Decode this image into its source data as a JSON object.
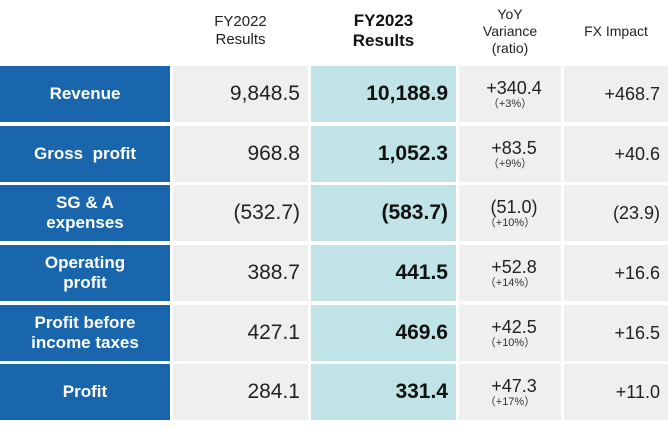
{
  "headers": {
    "fy2022": [
      "FY2022",
      "Results"
    ],
    "fy2023": [
      "FY2023",
      "Results"
    ],
    "variance": [
      "YoY",
      "Variance",
      "(ratio)"
    ],
    "fx": "FX Impact"
  },
  "rows": [
    {
      "label": [
        "Revenue"
      ],
      "fy2022": "9,848.5",
      "fy2023": "10,188.9",
      "variance": "+340.4",
      "ratio": "（+3%）",
      "fx": "+468.7"
    },
    {
      "label": [
        "Gross  profit"
      ],
      "fy2022": "968.8",
      "fy2023": "1,052.3",
      "variance": "+83.5",
      "ratio": "（+9%）",
      "fx": "+40.6"
    },
    {
      "label": [
        "SG & A",
        "expenses"
      ],
      "fy2022": "(532.7)",
      "fy2023": "(583.7)",
      "variance": "(51.0)",
      "ratio": "（+10%）",
      "fx": "(23.9)"
    },
    {
      "label": [
        "Operating",
        "profit"
      ],
      "fy2022": "388.7",
      "fy2023": "441.5",
      "variance": "+52.8",
      "ratio": "（+14%）",
      "fx": "+16.6"
    },
    {
      "label": [
        "Profit before",
        "income taxes"
      ],
      "fy2022": "427.1",
      "fy2023": "469.6",
      "variance": "+42.5",
      "ratio": "（+10%）",
      "fx": "+16.5"
    },
    {
      "label": [
        "Profit"
      ],
      "fy2022": "284.1",
      "fy2023": "331.4",
      "variance": "+47.3",
      "ratio": "（+17%）",
      "fx": "+11.0"
    }
  ],
  "colors": {
    "label_bg": "#1a66ad",
    "fy2023_bg": "#bfe3e6",
    "cell_bg": "#efefef"
  }
}
